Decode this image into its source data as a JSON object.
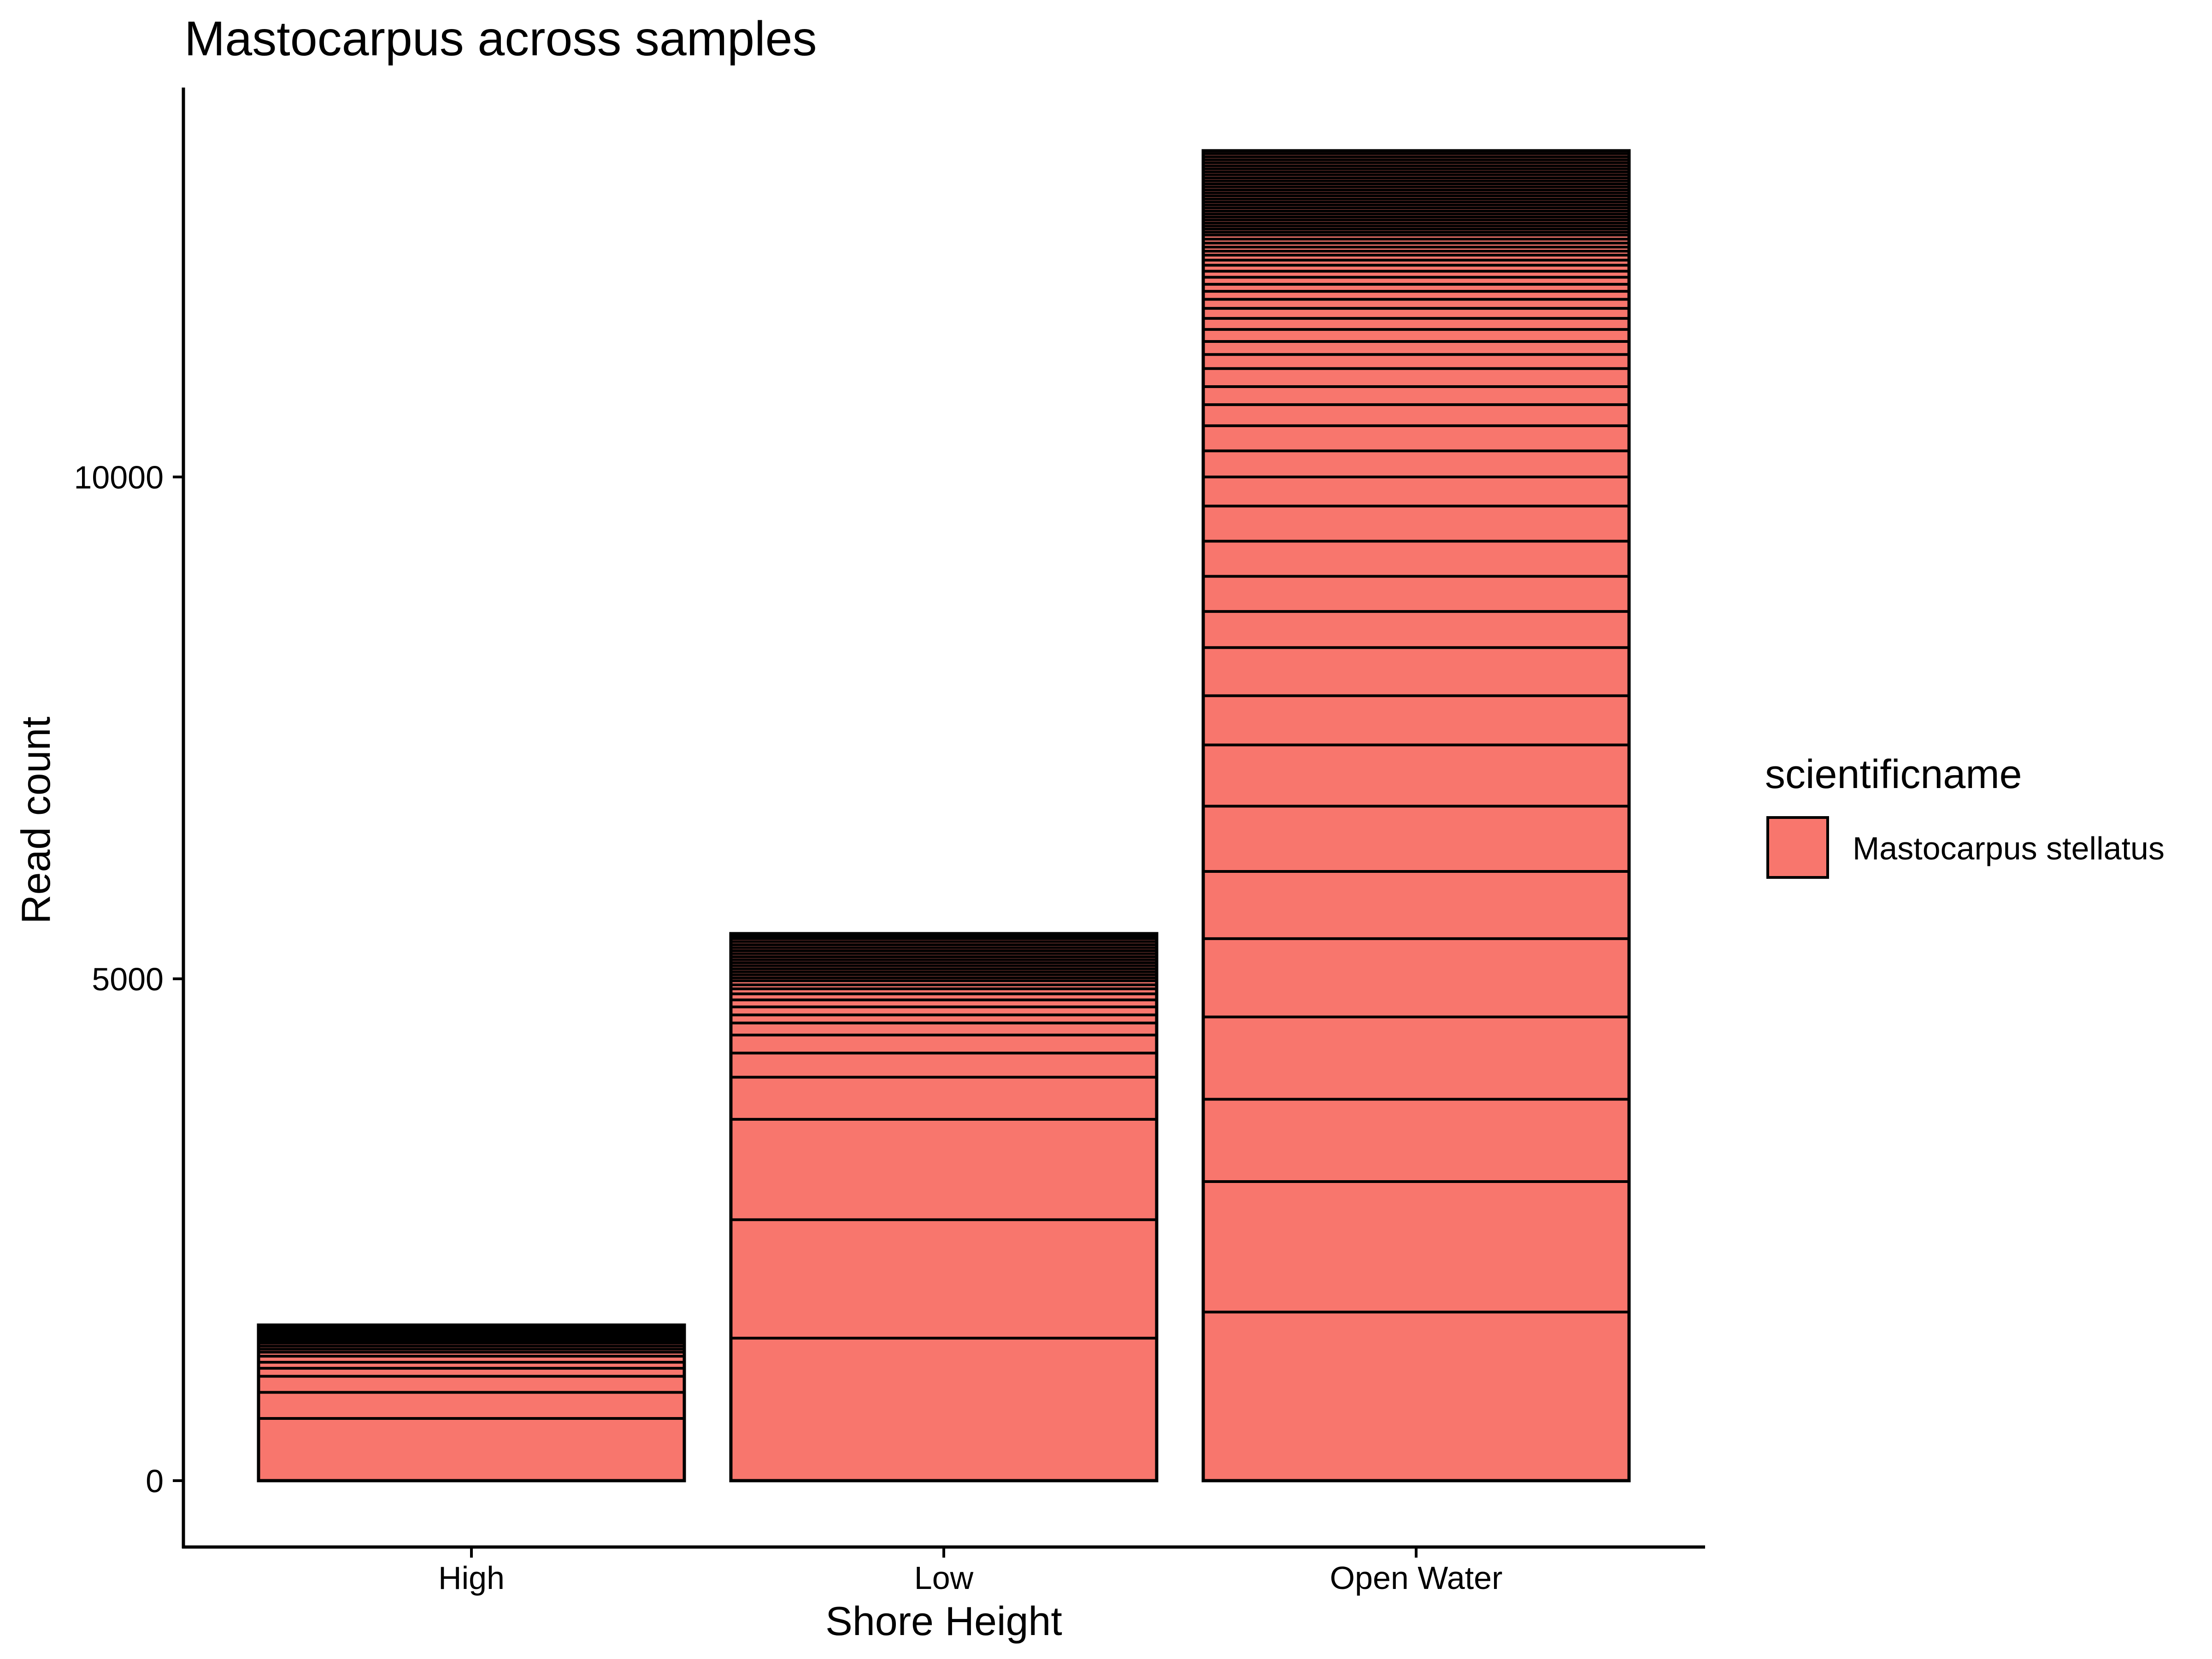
{
  "chart_data": {
    "type": "bar",
    "stacked": true,
    "title": "Mastocarpus across samples",
    "xlabel": "Shore Height",
    "ylabel": "Read count",
    "categories": [
      "High",
      "Low",
      "Open Water"
    ],
    "ylim": [
      0,
      13200
    ],
    "yticks": [
      0,
      5000,
      10000
    ],
    "ytick_labels": [
      "0",
      "5000",
      "10000"
    ],
    "grid": false,
    "legend": {
      "title": "scientificname",
      "position": "right",
      "entries": [
        {
          "label": "Mastocarpus stellatus",
          "color": "#F8766D"
        }
      ]
    },
    "fill_color": "#F8766D",
    "outline_color": "#000000",
    "totals": [
      1550,
      5450,
      13250
    ],
    "segment_boundaries": [
      [
        620,
        880,
        1040,
        1120,
        1180,
        1240,
        1280,
        1310,
        1340,
        1370,
        1395,
        1420,
        1440,
        1460,
        1480,
        1495,
        1510,
        1525,
        1540
      ],
      [
        1420,
        2600,
        3600,
        4020,
        4260,
        4440,
        4560,
        4640,
        4720,
        4790,
        4850,
        4900,
        4940,
        4980,
        5010,
        5040,
        5070,
        5100,
        5130,
        5160,
        5190,
        5220,
        5250,
        5280,
        5310,
        5340,
        5370,
        5400,
        5425
      ],
      [
        1680,
        2980,
        3800,
        4620,
        5400,
        6070,
        6720,
        7330,
        7820,
        8300,
        8660,
        9010,
        9360,
        9710,
        10000,
        10260,
        10510,
        10720,
        10900,
        11080,
        11220,
        11350,
        11470,
        11580,
        11680,
        11770,
        11850,
        11920,
        11990,
        12050,
        12110,
        12160,
        12210,
        12250,
        12290,
        12330,
        12370,
        12410,
        12440,
        12470,
        12500,
        12530,
        12560,
        12590,
        12620,
        12650,
        12680,
        12710,
        12740,
        12770,
        12800,
        12830,
        12860,
        12890,
        12920,
        12950,
        12980,
        13010,
        13040,
        13070,
        13100,
        13130,
        13160,
        13190,
        13220
      ]
    ]
  }
}
